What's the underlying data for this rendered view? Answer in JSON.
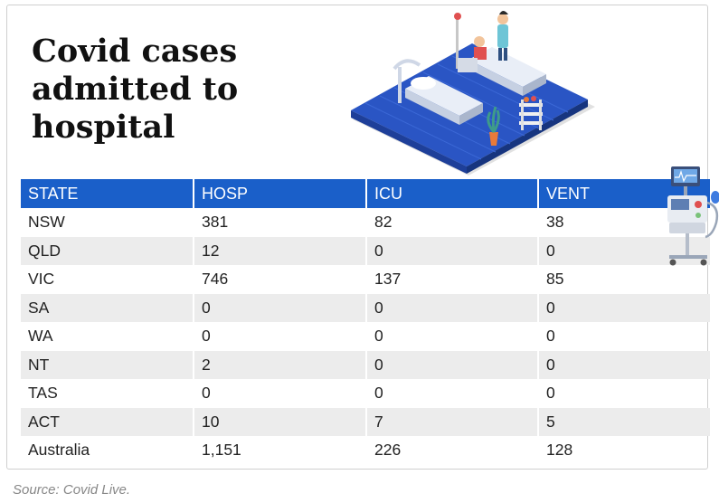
{
  "title": "Covid cases admitted to hospital",
  "table": {
    "headers": [
      "STATE",
      "HOSP",
      "ICU",
      "VENT"
    ],
    "rows": [
      [
        "NSW",
        "381",
        "82",
        "38"
      ],
      [
        "QLD",
        "12",
        "0",
        "0"
      ],
      [
        "VIC",
        "746",
        "137",
        "85"
      ],
      [
        "SA",
        "0",
        "0",
        "0"
      ],
      [
        "WA",
        "0",
        "0",
        "0"
      ],
      [
        "NT",
        "2",
        "0",
        "0"
      ],
      [
        "TAS",
        "0",
        "0",
        "0"
      ],
      [
        "ACT",
        "10",
        "7",
        "5"
      ],
      [
        "Australia",
        "1,151",
        "226",
        "128"
      ]
    ]
  },
  "source": "Source: Covid Live.",
  "colors": {
    "header_bg": "#1a5fc9",
    "stripe_bg": "#ececec",
    "illustration_floor": "#2a55c4"
  },
  "illustrations": [
    "hospital-ward-isometric-illustration",
    "ventilator-illustration"
  ]
}
